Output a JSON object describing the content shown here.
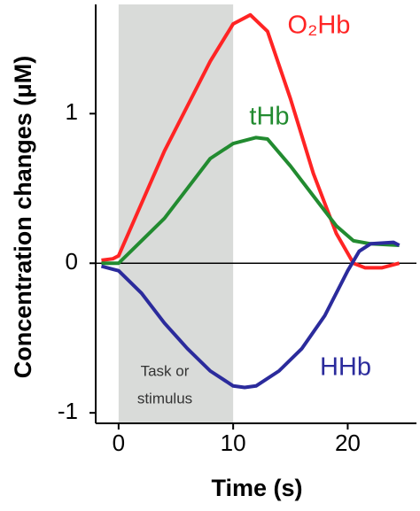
{
  "chart_data": {
    "type": "line",
    "x_label": "Time (s)",
    "y_label": "Concentration changes (μM)",
    "xlim": [
      -2,
      26
    ],
    "ylim": [
      -1.07,
      1.73
    ],
    "xticks": [
      0,
      10,
      20
    ],
    "yticks": [
      -1,
      0,
      1
    ],
    "shade": [
      0,
      10
    ],
    "shade_label": [
      "Task or",
      "stimulus"
    ],
    "series": [
      {
        "name": "O₂Hb",
        "color": "#ff2424",
        "x": [
          -1.5,
          -0.5,
          0,
          2,
          4,
          6,
          8,
          10,
          11.5,
          13,
          15,
          17,
          19,
          20.5,
          21.5,
          23,
          24.5
        ],
        "values": [
          0.02,
          0.03,
          0.05,
          0.4,
          0.75,
          1.05,
          1.35,
          1.6,
          1.66,
          1.55,
          1.1,
          0.6,
          0.2,
          0,
          -0.03,
          -0.03,
          0
        ]
      },
      {
        "name": "tHb",
        "color": "#228b30",
        "x": [
          -1.5,
          0,
          2,
          4,
          6,
          8,
          10,
          12,
          13,
          15,
          17,
          19,
          20.5,
          22,
          24.5
        ],
        "values": [
          0,
          0,
          0.15,
          0.3,
          0.5,
          0.7,
          0.8,
          0.84,
          0.83,
          0.65,
          0.45,
          0.25,
          0.15,
          0.13,
          0.12
        ]
      },
      {
        "name": "HHb",
        "color": "#2b2b9c",
        "x": [
          -1.5,
          0,
          2,
          4,
          6,
          8,
          10,
          11,
          12,
          14,
          16,
          18,
          20,
          21,
          22,
          24,
          24.5
        ],
        "values": [
          -0.02,
          -0.05,
          -0.2,
          -0.4,
          -0.57,
          -0.72,
          -0.82,
          -0.83,
          -0.82,
          -0.72,
          -0.57,
          -0.35,
          -0.05,
          0.08,
          0.13,
          0.14,
          0.12
        ]
      }
    ]
  }
}
